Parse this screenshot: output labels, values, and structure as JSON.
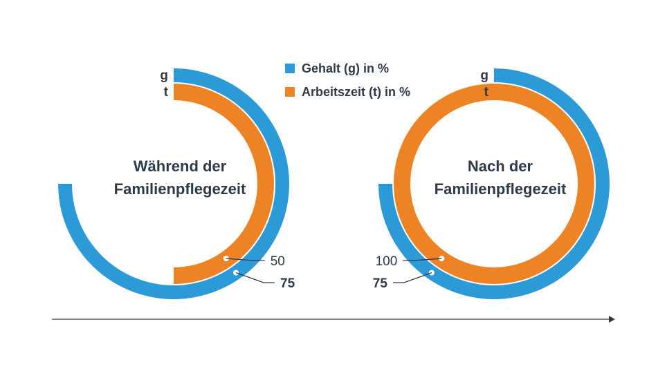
{
  "colors": {
    "gehalt": "#2b9ad6",
    "arbeitszeit": "#ee8326",
    "text": "#2e3a45",
    "leader": "#2e3a45"
  },
  "legend": {
    "gehalt_label": "Gehalt (g) in %",
    "arbeitszeit_label": "Arbeitszeit (t) in %"
  },
  "chart_data": [
    {
      "type": "pie",
      "title": "Während der Familienpflegezeit",
      "title_lines": [
        "Während der",
        "Familienpflegezeit"
      ],
      "ring_labels": {
        "outer": "g",
        "inner": "t"
      },
      "series": [
        {
          "name": "Gehalt (g) in %",
          "key": "gehalt",
          "value": 75,
          "label": "75",
          "label_bold": true
        },
        {
          "name": "Arbeitszeit (t) in %",
          "key": "arbeitszeit",
          "value": 50,
          "label": "50",
          "label_bold": false
        }
      ]
    },
    {
      "type": "pie",
      "title": "Nach der Familienpflegezeit",
      "title_lines": [
        "Nach der",
        "Familienpflegezeit"
      ],
      "ring_labels": {
        "outer": "g",
        "inner": "t"
      },
      "series": [
        {
          "name": "Gehalt (g) in %",
          "key": "gehalt",
          "value": 75,
          "label": "75",
          "label_bold": true
        },
        {
          "name": "Arbeitszeit (t) in %",
          "key": "arbeitszeit",
          "value": 100,
          "label": "100",
          "label_bold": false
        }
      ]
    }
  ]
}
